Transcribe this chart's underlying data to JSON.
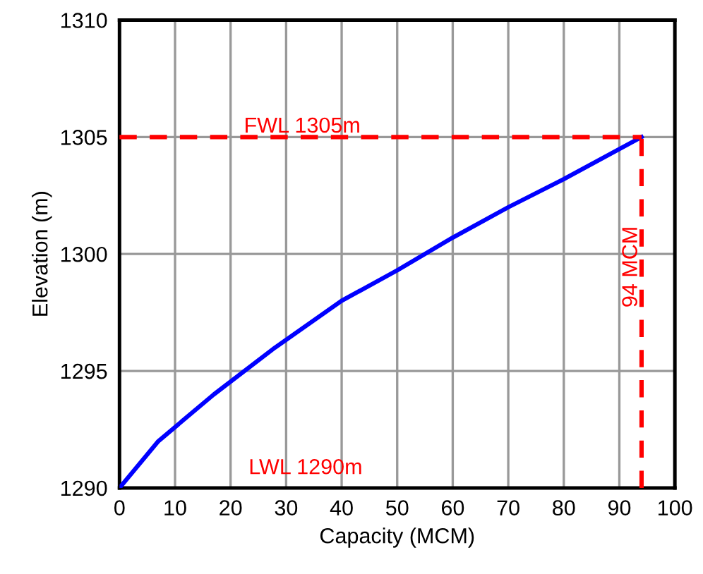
{
  "chart_data": {
    "type": "line",
    "xlabel": "Capacity (MCM)",
    "ylabel": "Elevation (m)",
    "x": [
      0,
      7,
      17,
      28,
      40,
      50,
      60,
      70,
      80,
      94
    ],
    "series": [
      {
        "color": "#0000ff",
        "values": [
          1290,
          1292,
          1294,
          1296,
          1298,
          1299.3,
          1300.7,
          1302,
          1303.2,
          1305
        ]
      }
    ],
    "xlim": [
      0,
      100
    ],
    "xticks": [
      0,
      10,
      20,
      30,
      40,
      50,
      60,
      70,
      80,
      90,
      100
    ],
    "ylim": [
      1290,
      1310
    ],
    "yticks": [
      1290,
      1295,
      1300,
      1305,
      1310
    ],
    "grid": true,
    "line_style": "solid",
    "ref_lines": [
      {
        "axis": "y",
        "value": 1305,
        "label": "FWL 1305m",
        "color": "#ff0000",
        "line_style": "dashed"
      },
      {
        "axis": "x",
        "value": 94,
        "label": "94 MCM",
        "color": "#ff0000",
        "line_style": "dashed"
      }
    ],
    "annotations": [
      "LWL 1290m"
    ]
  }
}
